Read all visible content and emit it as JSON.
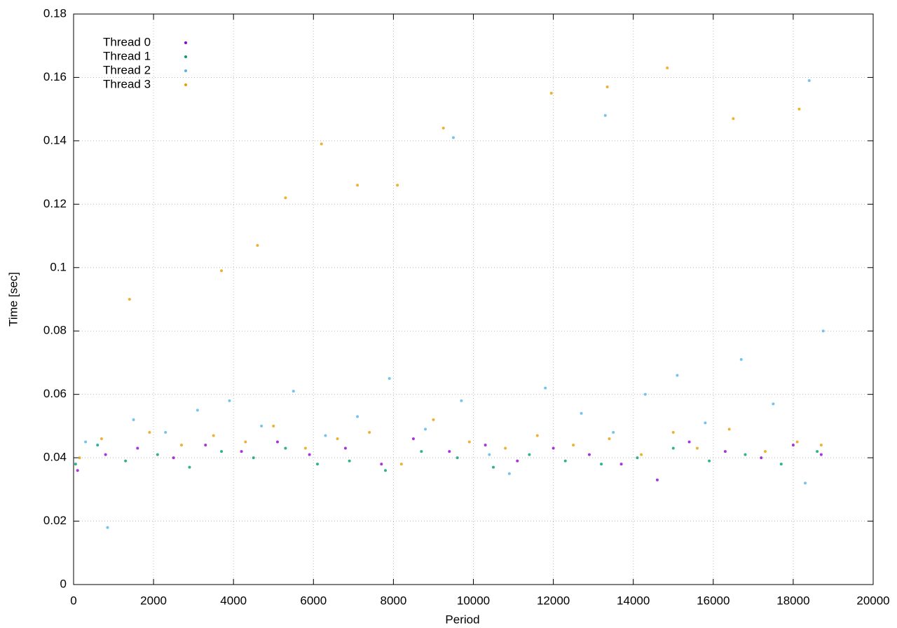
{
  "chart_data": {
    "type": "scatter",
    "xlabel": "Period",
    "ylabel": "Time [sec]",
    "xlim": [
      0,
      20000
    ],
    "xticks": [
      0,
      2000,
      4000,
      6000,
      8000,
      10000,
      12000,
      14000,
      16000,
      18000,
      20000
    ],
    "ylim": [
      0,
      0.18
    ],
    "yticks": [
      0,
      0.02,
      0.04,
      0.06,
      0.08,
      0.1,
      0.12,
      0.14,
      0.16,
      0.18
    ],
    "grid": true,
    "legend": "top-left",
    "series": [
      {
        "name": "Thread 0",
        "color": "#9400d3",
        "x": [
          100,
          800,
          1600,
          2500,
          3300,
          4200,
          5100,
          5900,
          6800,
          7700,
          8500,
          9400,
          10300,
          11100,
          12000,
          12900,
          13700,
          14600,
          15400,
          16300,
          17200,
          18000,
          18700
        ],
        "values": [
          0.036,
          0.041,
          0.043,
          0.04,
          0.044,
          0.042,
          0.045,
          0.041,
          0.043,
          0.038,
          0.046,
          0.042,
          0.044,
          0.039,
          0.043,
          0.041,
          0.038,
          0.033,
          0.045,
          0.042,
          0.04,
          0.044,
          0.041
        ]
      },
      {
        "name": "Thread 1",
        "color": "#009e73",
        "x": [
          50,
          600,
          1300,
          2100,
          2900,
          3700,
          4500,
          5300,
          6100,
          6900,
          7800,
          8700,
          9600,
          10500,
          11400,
          12300,
          13200,
          14100,
          15000,
          15900,
          16800,
          17700,
          18600
        ],
        "values": [
          0.038,
          0.044,
          0.039,
          0.041,
          0.037,
          0.042,
          0.04,
          0.043,
          0.038,
          0.039,
          0.036,
          0.042,
          0.04,
          0.037,
          0.041,
          0.039,
          0.038,
          0.04,
          0.043,
          0.039,
          0.041,
          0.038,
          0.042
        ]
      },
      {
        "name": "Thread 2",
        "color": "#56b4e9",
        "x": [
          300,
          850,
          1500,
          2300,
          3100,
          3900,
          4700,
          5500,
          6300,
          7100,
          7900,
          8800,
          9700,
          10400,
          10900,
          11800,
          12700,
          13500,
          14300,
          15100,
          15800,
          16700,
          17500,
          18300,
          18750,
          9500,
          13300,
          18400
        ],
        "values": [
          0.045,
          0.018,
          0.052,
          0.048,
          0.055,
          0.058,
          0.05,
          0.061,
          0.047,
          0.053,
          0.065,
          0.049,
          0.058,
          0.041,
          0.035,
          0.062,
          0.054,
          0.048,
          0.06,
          0.066,
          0.051,
          0.071,
          0.057,
          0.032,
          0.08,
          0.141,
          0.148,
          0.159
        ]
      },
      {
        "name": "Thread 3",
        "color": "#e69f00",
        "x": [
          150,
          700,
          1400,
          1900,
          2700,
          3500,
          4300,
          5000,
          5800,
          6600,
          7400,
          8200,
          9000,
          9900,
          10800,
          11600,
          12500,
          13400,
          14200,
          15000,
          15600,
          16400,
          17300,
          18100,
          18700,
          14850,
          13350,
          11950,
          9250,
          6200,
          7100,
          5300,
          4600,
          18150,
          16500,
          3700,
          8100
        ],
        "values": [
          0.04,
          0.046,
          0.09,
          0.048,
          0.044,
          0.047,
          0.045,
          0.05,
          0.043,
          0.046,
          0.048,
          0.038,
          0.052,
          0.045,
          0.043,
          0.047,
          0.044,
          0.046,
          0.041,
          0.048,
          0.043,
          0.049,
          0.042,
          0.045,
          0.044,
          0.163,
          0.157,
          0.155,
          0.144,
          0.139,
          0.126,
          0.122,
          0.107,
          0.15,
          0.147,
          0.099,
          0.126
        ]
      }
    ]
  }
}
